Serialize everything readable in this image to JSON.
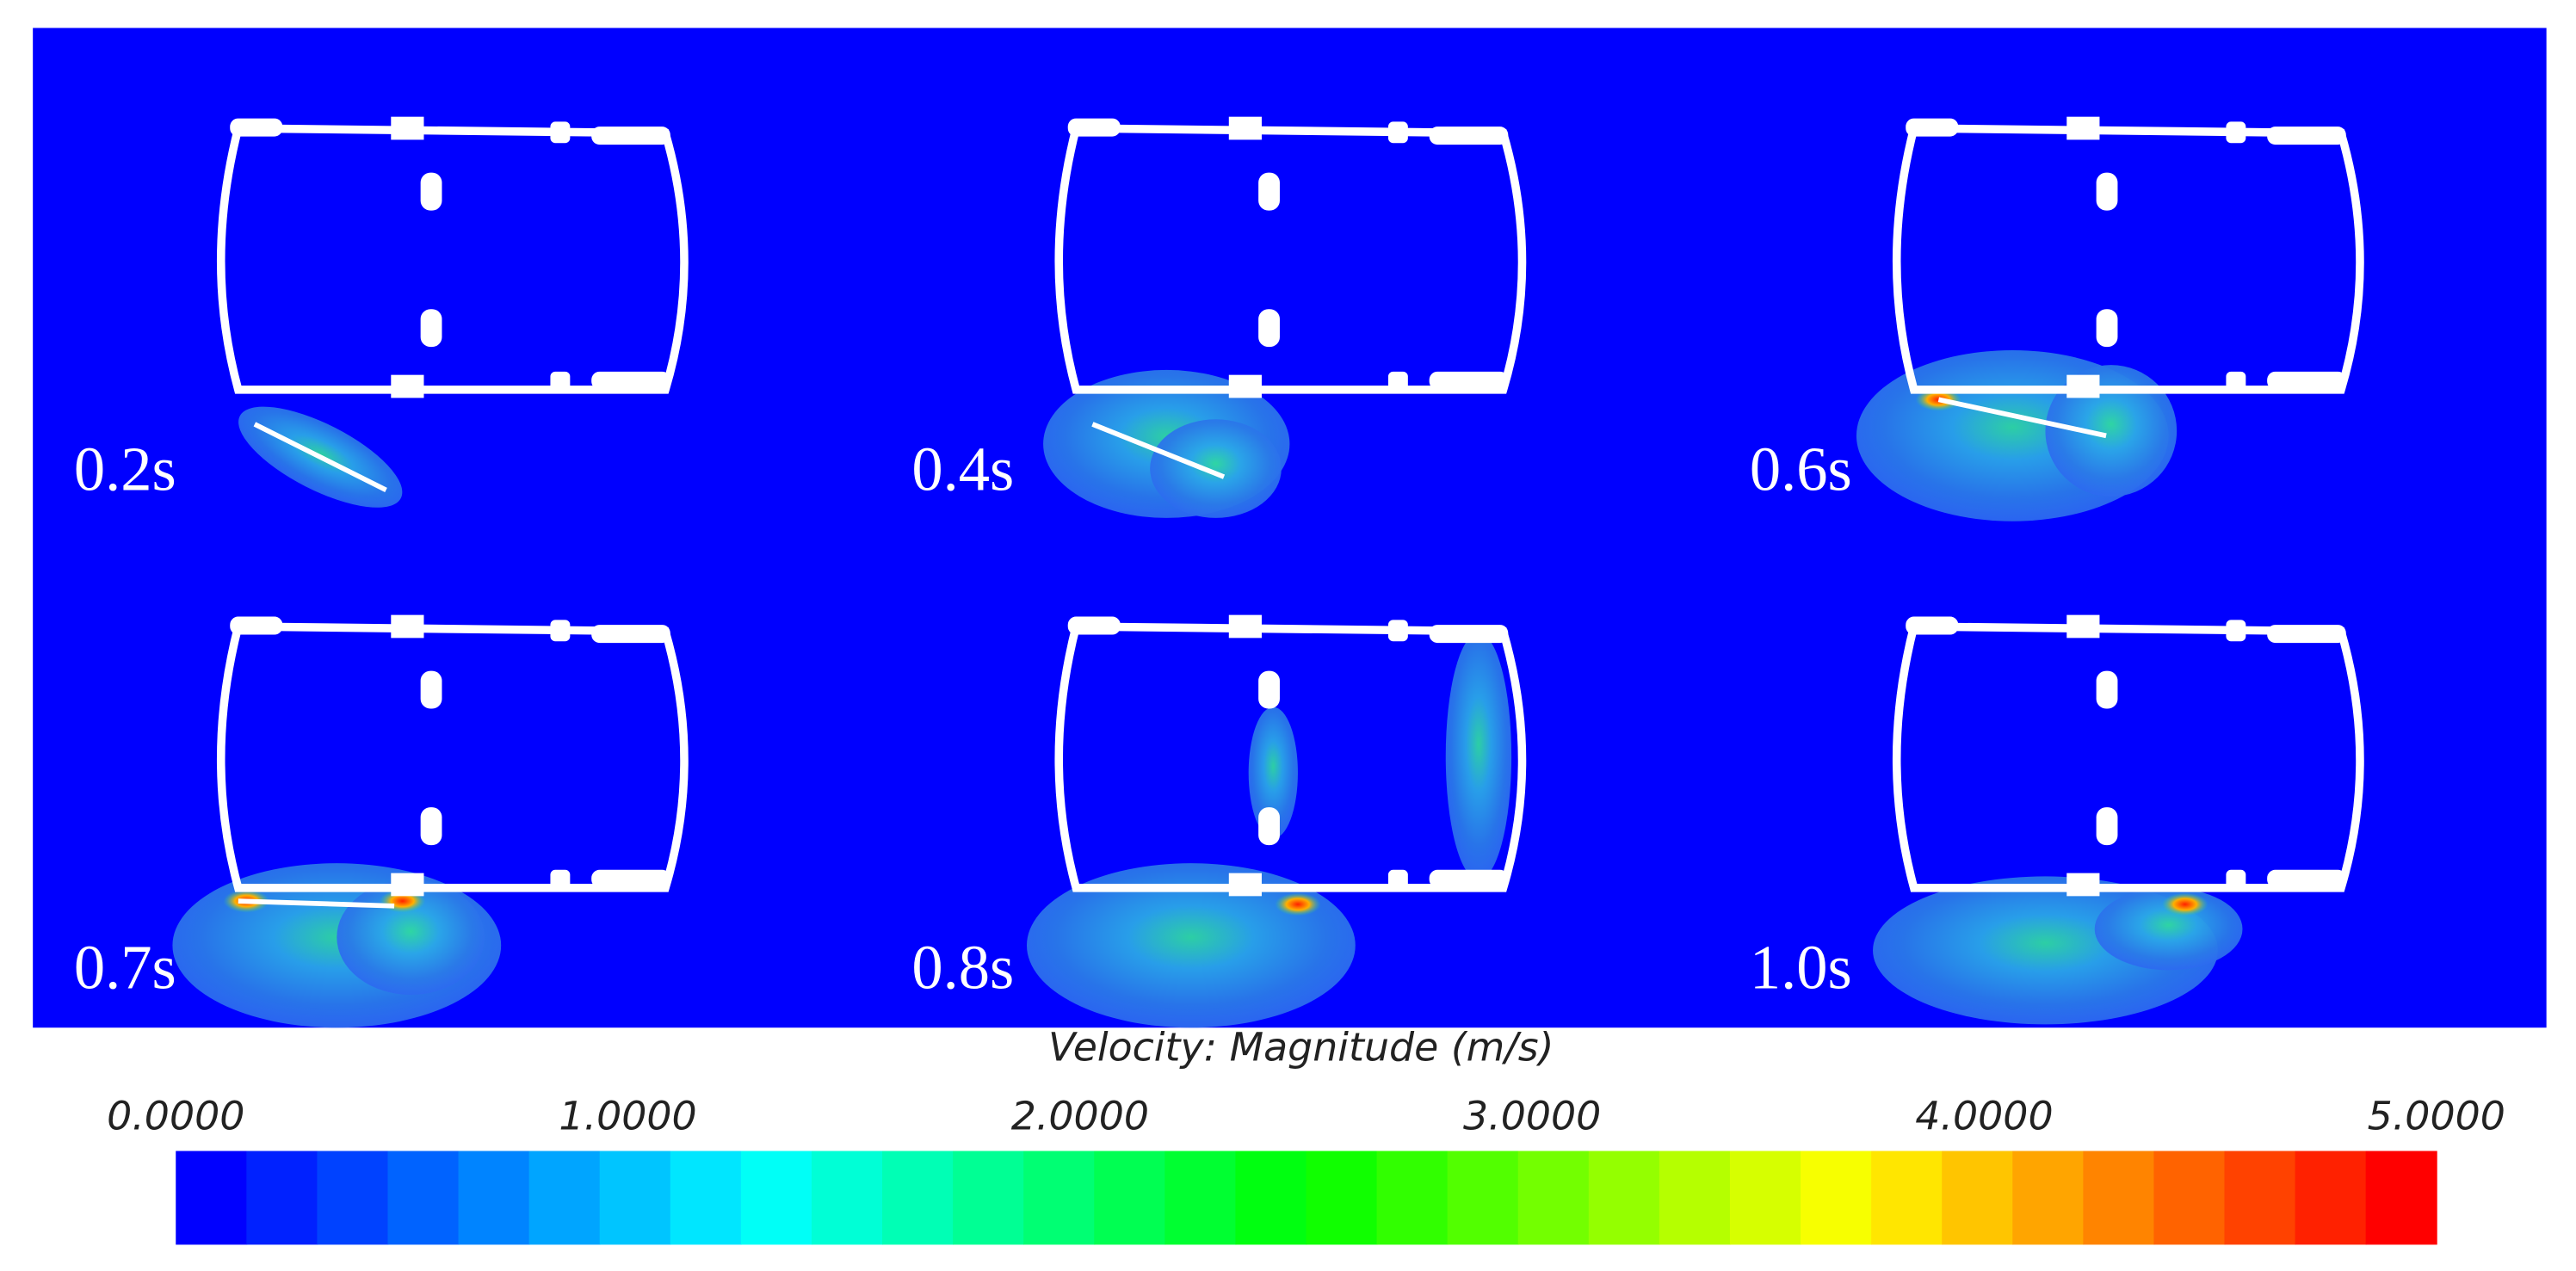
{
  "panels": [
    {
      "label": "0.2s"
    },
    {
      "label": "0.4s"
    },
    {
      "label": "0.6s"
    },
    {
      "label": "0.7s"
    },
    {
      "label": "0.8s"
    },
    {
      "label": "1.0s"
    }
  ],
  "colorbar": {
    "title": "Velocity: Magnitude (m/s)",
    "ticks": [
      {
        "value": 0,
        "label": "0.0000"
      },
      {
        "value": 1,
        "label": "1.0000"
      },
      {
        "value": 2,
        "label": "2.0000"
      },
      {
        "value": 3,
        "label": "3.0000"
      },
      {
        "value": 4,
        "label": "4.0000"
      },
      {
        "value": 5,
        "label": "5.0000"
      }
    ]
  }
}
